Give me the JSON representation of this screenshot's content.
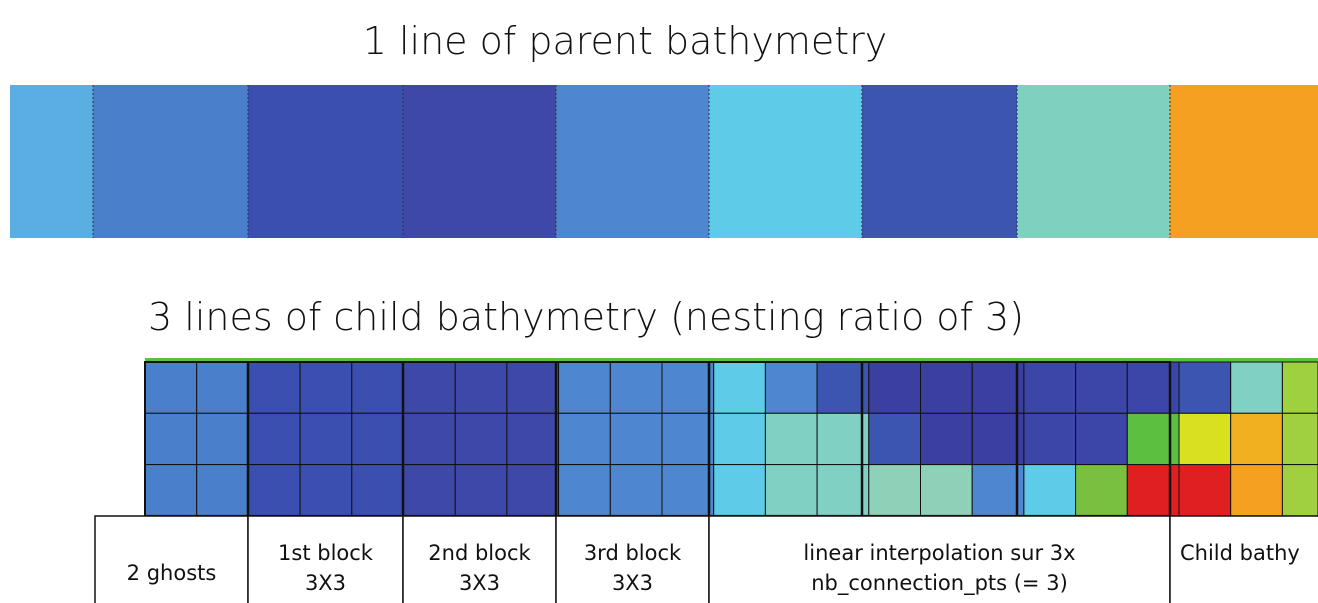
{
  "titles": {
    "parent": "1 line of parent bathymetry",
    "child": "3 lines of child bathymetry (nesting ratio of 3)"
  },
  "table": {
    "cells": [
      {
        "lines": [
          "2 ghosts"
        ]
      },
      {
        "lines": [
          "1st block",
          "3X3"
        ]
      },
      {
        "lines": [
          "2nd block",
          "3X3"
        ]
      },
      {
        "lines": [
          "3rd block",
          "3X3"
        ]
      },
      {
        "lines": [
          "linear interpolation sur 3x",
          "nb_connection_pts (= 3)"
        ]
      },
      {
        "lines": [
          "Child bathy"
        ]
      }
    ]
  }
}
